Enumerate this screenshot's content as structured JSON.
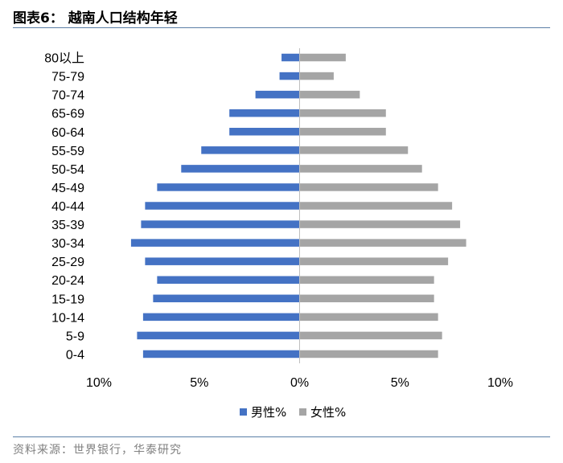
{
  "header": {
    "title": "图表6：  越南人口结构年轻"
  },
  "footer": {
    "source": "资料来源：世界银行，华泰研究"
  },
  "colors": {
    "male": "#4472c4",
    "female": "#a5a5a5",
    "rule": "#5b7fa6",
    "axis": "#bfbfbf"
  },
  "chart_data": {
    "type": "bar",
    "orientation": "horizontal",
    "categories": [
      "0-4",
      "5-9",
      "10-14",
      "15-19",
      "20-24",
      "25-29",
      "30-34",
      "35-39",
      "40-44",
      "45-49",
      "50-54",
      "55-59",
      "60-64",
      "65-69",
      "70-74",
      "75-79",
      "80以上"
    ],
    "series": [
      {
        "name": "男性%",
        "values": [
          -7.8,
          -8.1,
          -7.8,
          -7.3,
          -7.1,
          -7.7,
          -8.4,
          -7.9,
          -7.7,
          -7.1,
          -5.9,
          -4.9,
          -3.5,
          -3.5,
          -2.2,
          -1.0,
          -0.9
        ]
      },
      {
        "name": "女性%",
        "values": [
          6.9,
          7.1,
          6.9,
          6.7,
          6.7,
          7.4,
          8.3,
          8.0,
          7.6,
          6.9,
          6.1,
          5.4,
          4.3,
          4.3,
          3.0,
          1.7,
          2.3
        ]
      }
    ],
    "xlim": [
      -10,
      10
    ],
    "xticks": [
      -10,
      -5,
      0,
      5,
      10
    ],
    "xtick_labels": [
      "10%",
      "5%",
      "0%",
      "5%",
      "10%"
    ],
    "legend_position": "bottom",
    "grid": false
  }
}
